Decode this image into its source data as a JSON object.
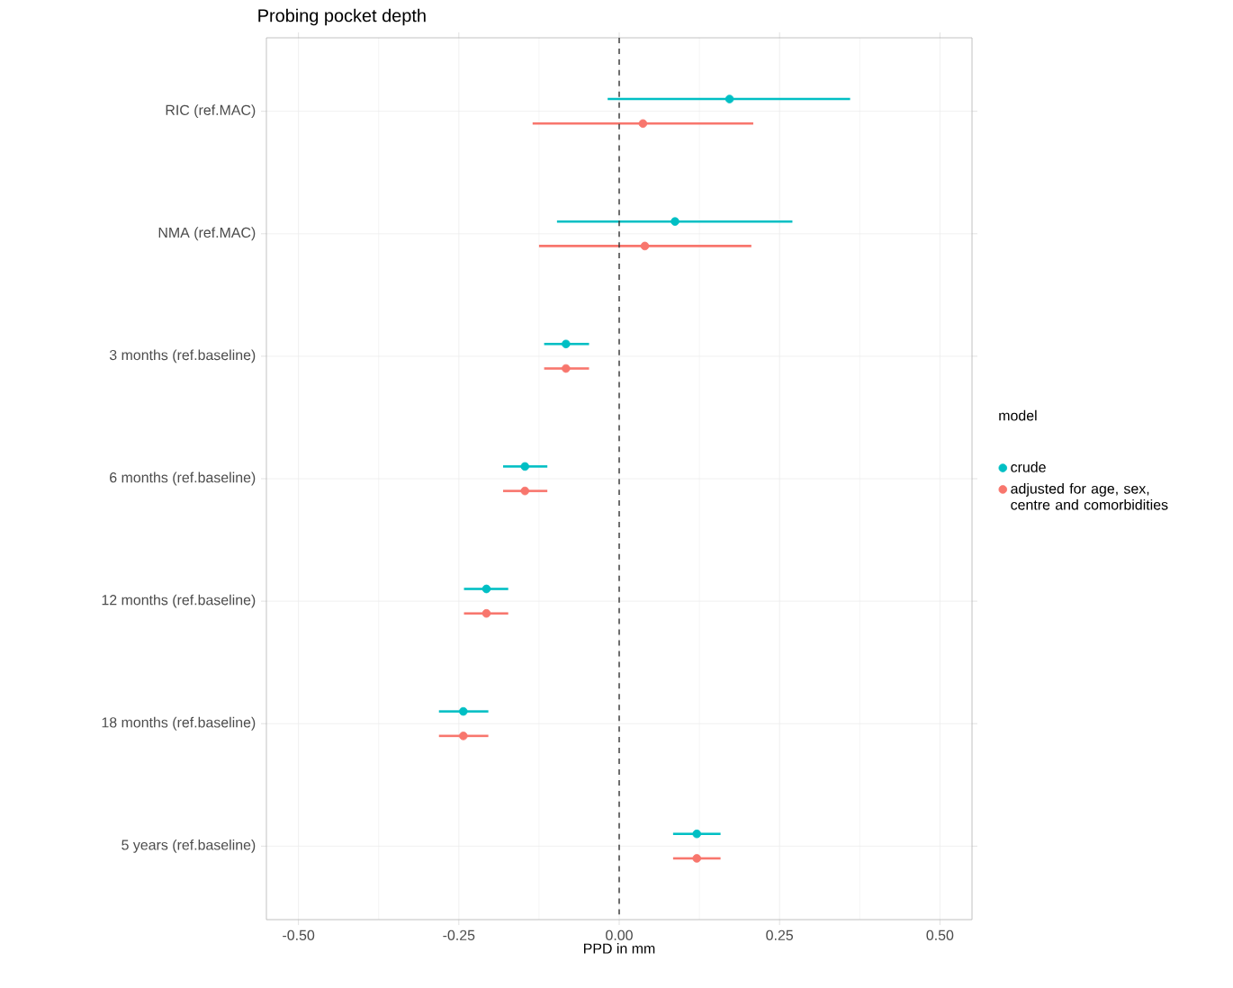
{
  "chart_data": {
    "type": "scatter",
    "title": "Probing pocket depth",
    "xlabel": "PPD in mm",
    "legend_title": "model",
    "categories": [
      "RIC (ref.MAC)",
      "NMA (ref.MAC)",
      "3 months (ref.baseline)",
      "6 months (ref.baseline)",
      "12 months (ref.baseline)",
      "18 months (ref.baseline)",
      "5 years (ref.baseline)"
    ],
    "orientation": "horizontal",
    "series": [
      {
        "name": "crude",
        "color": "#00bfc4",
        "values": [
          0.172,
          0.087,
          -0.083,
          -0.147,
          -0.207,
          -0.243,
          0.121
        ],
        "errors": [
          [
            -0.018,
            0.36
          ],
          [
            -0.097,
            0.27
          ],
          [
            -0.117,
            -0.047
          ],
          [
            -0.181,
            -0.112
          ],
          [
            -0.242,
            -0.173
          ],
          [
            -0.281,
            -0.204
          ],
          [
            0.084,
            0.158
          ]
        ]
      },
      {
        "name": "adjusted for age, sex, centre and comorbidities",
        "color": "#f8766d",
        "values": [
          0.037,
          0.04,
          -0.083,
          -0.147,
          -0.207,
          -0.243,
          0.121
        ],
        "errors": [
          [
            -0.135,
            0.209
          ],
          [
            -0.125,
            0.206
          ],
          [
            -0.117,
            -0.047
          ],
          [
            -0.181,
            -0.112
          ],
          [
            -0.242,
            -0.173
          ],
          [
            -0.281,
            -0.204
          ],
          [
            0.084,
            0.158
          ]
        ]
      }
    ],
    "xlim": [
      -0.55,
      0.55
    ],
    "xticks": [
      {
        "value": -0.5,
        "label": "-0.50"
      },
      {
        "value": -0.25,
        "label": "-0.25"
      },
      {
        "value": 0,
        "label": "0.00"
      },
      {
        "value": 0.25,
        "label": "0.25"
      },
      {
        "value": 0.5,
        "label": "0.50"
      }
    ],
    "ref_lines": [
      {
        "axis": "x",
        "value": 0,
        "line_style": "dashed"
      }
    ],
    "grid": true,
    "legend": "right"
  }
}
